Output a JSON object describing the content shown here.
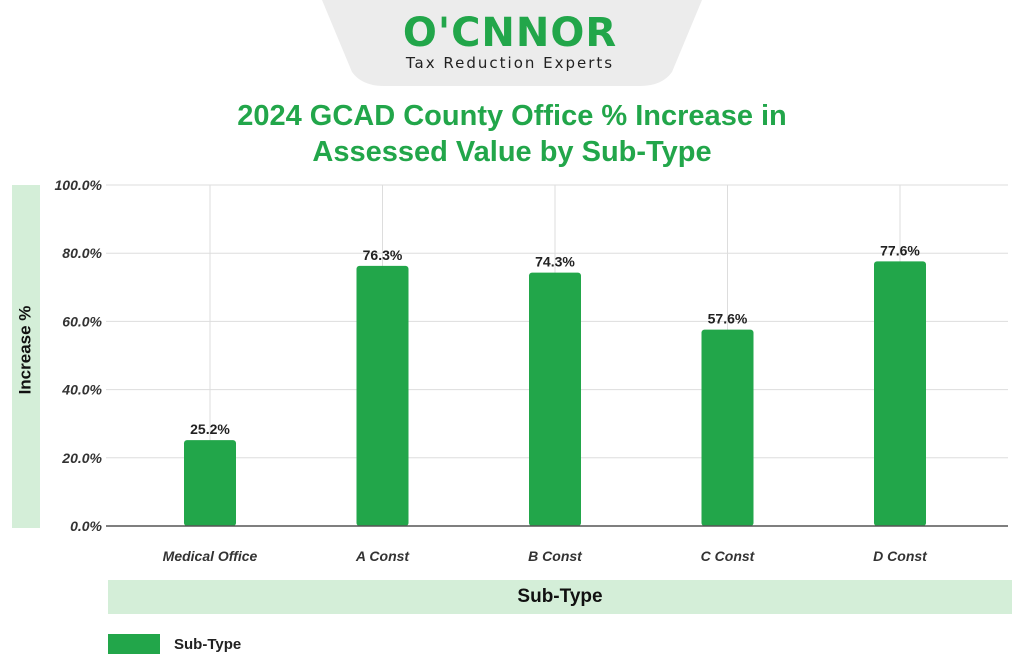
{
  "logo": {
    "text_left": "O'C",
    "text_right": "NNOR",
    "tagline": "Tax Reduction Experts"
  },
  "colors": {
    "bar": "#22a64a",
    "title": "#22a64a",
    "panel": "#d4eed8",
    "grid": "#dddddd",
    "axis": "#555555"
  },
  "chart_data": {
    "type": "bar",
    "title": "2024 GCAD County Office % Increase in Assessed Value by Sub-Type",
    "title_lines": [
      "2024 GCAD County Office % Increase in",
      "Assessed Value by Sub-Type"
    ],
    "xlabel": "Sub-Type",
    "ylabel": "Increase %",
    "categories": [
      "Medical Office",
      "A Const",
      "B Const",
      "C Const",
      "D Const"
    ],
    "series": [
      {
        "name": "Sub-Type",
        "values": [
          25.2,
          76.3,
          74.3,
          57.6,
          77.6
        ]
      }
    ],
    "data_labels": [
      "25.2%",
      "76.3%",
      "74.3%",
      "57.6%",
      "77.6%"
    ],
    "ylim": [
      0,
      100
    ],
    "yticks": [
      0,
      20,
      40,
      60,
      80,
      100
    ],
    "ytick_labels": [
      "0.0%",
      "20.0%",
      "40.0%",
      "60.0%",
      "80.0%",
      "100.0%"
    ],
    "grid": true,
    "legend_position": "bottom-left"
  }
}
